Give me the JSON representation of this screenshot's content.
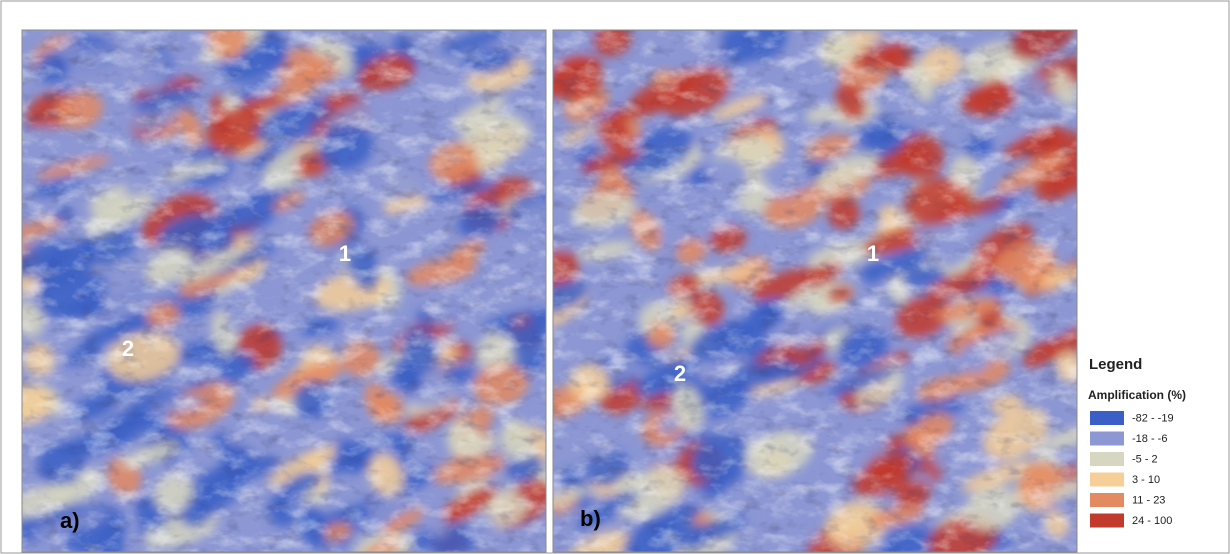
{
  "panels": [
    {
      "label": "a)",
      "markers": [
        "1",
        "2"
      ]
    },
    {
      "label": "b)",
      "markers": [
        "1",
        "2"
      ]
    }
  ],
  "legend": {
    "title": "Legend",
    "subtitle": "Amplification (%)",
    "items": [
      {
        "label": "-82 - -19",
        "color": "#3b5fc6"
      },
      {
        "label": "-18 - -6",
        "color": "#8c97d4"
      },
      {
        "label": "-5 - 2",
        "color": "#d7d6c0"
      },
      {
        "label": "3 - 10",
        "color": "#f6cf98"
      },
      {
        "label": "11 - 23",
        "color": "#e48a60"
      },
      {
        "label": "24 - 100",
        "color": "#c23a2c"
      }
    ]
  }
}
